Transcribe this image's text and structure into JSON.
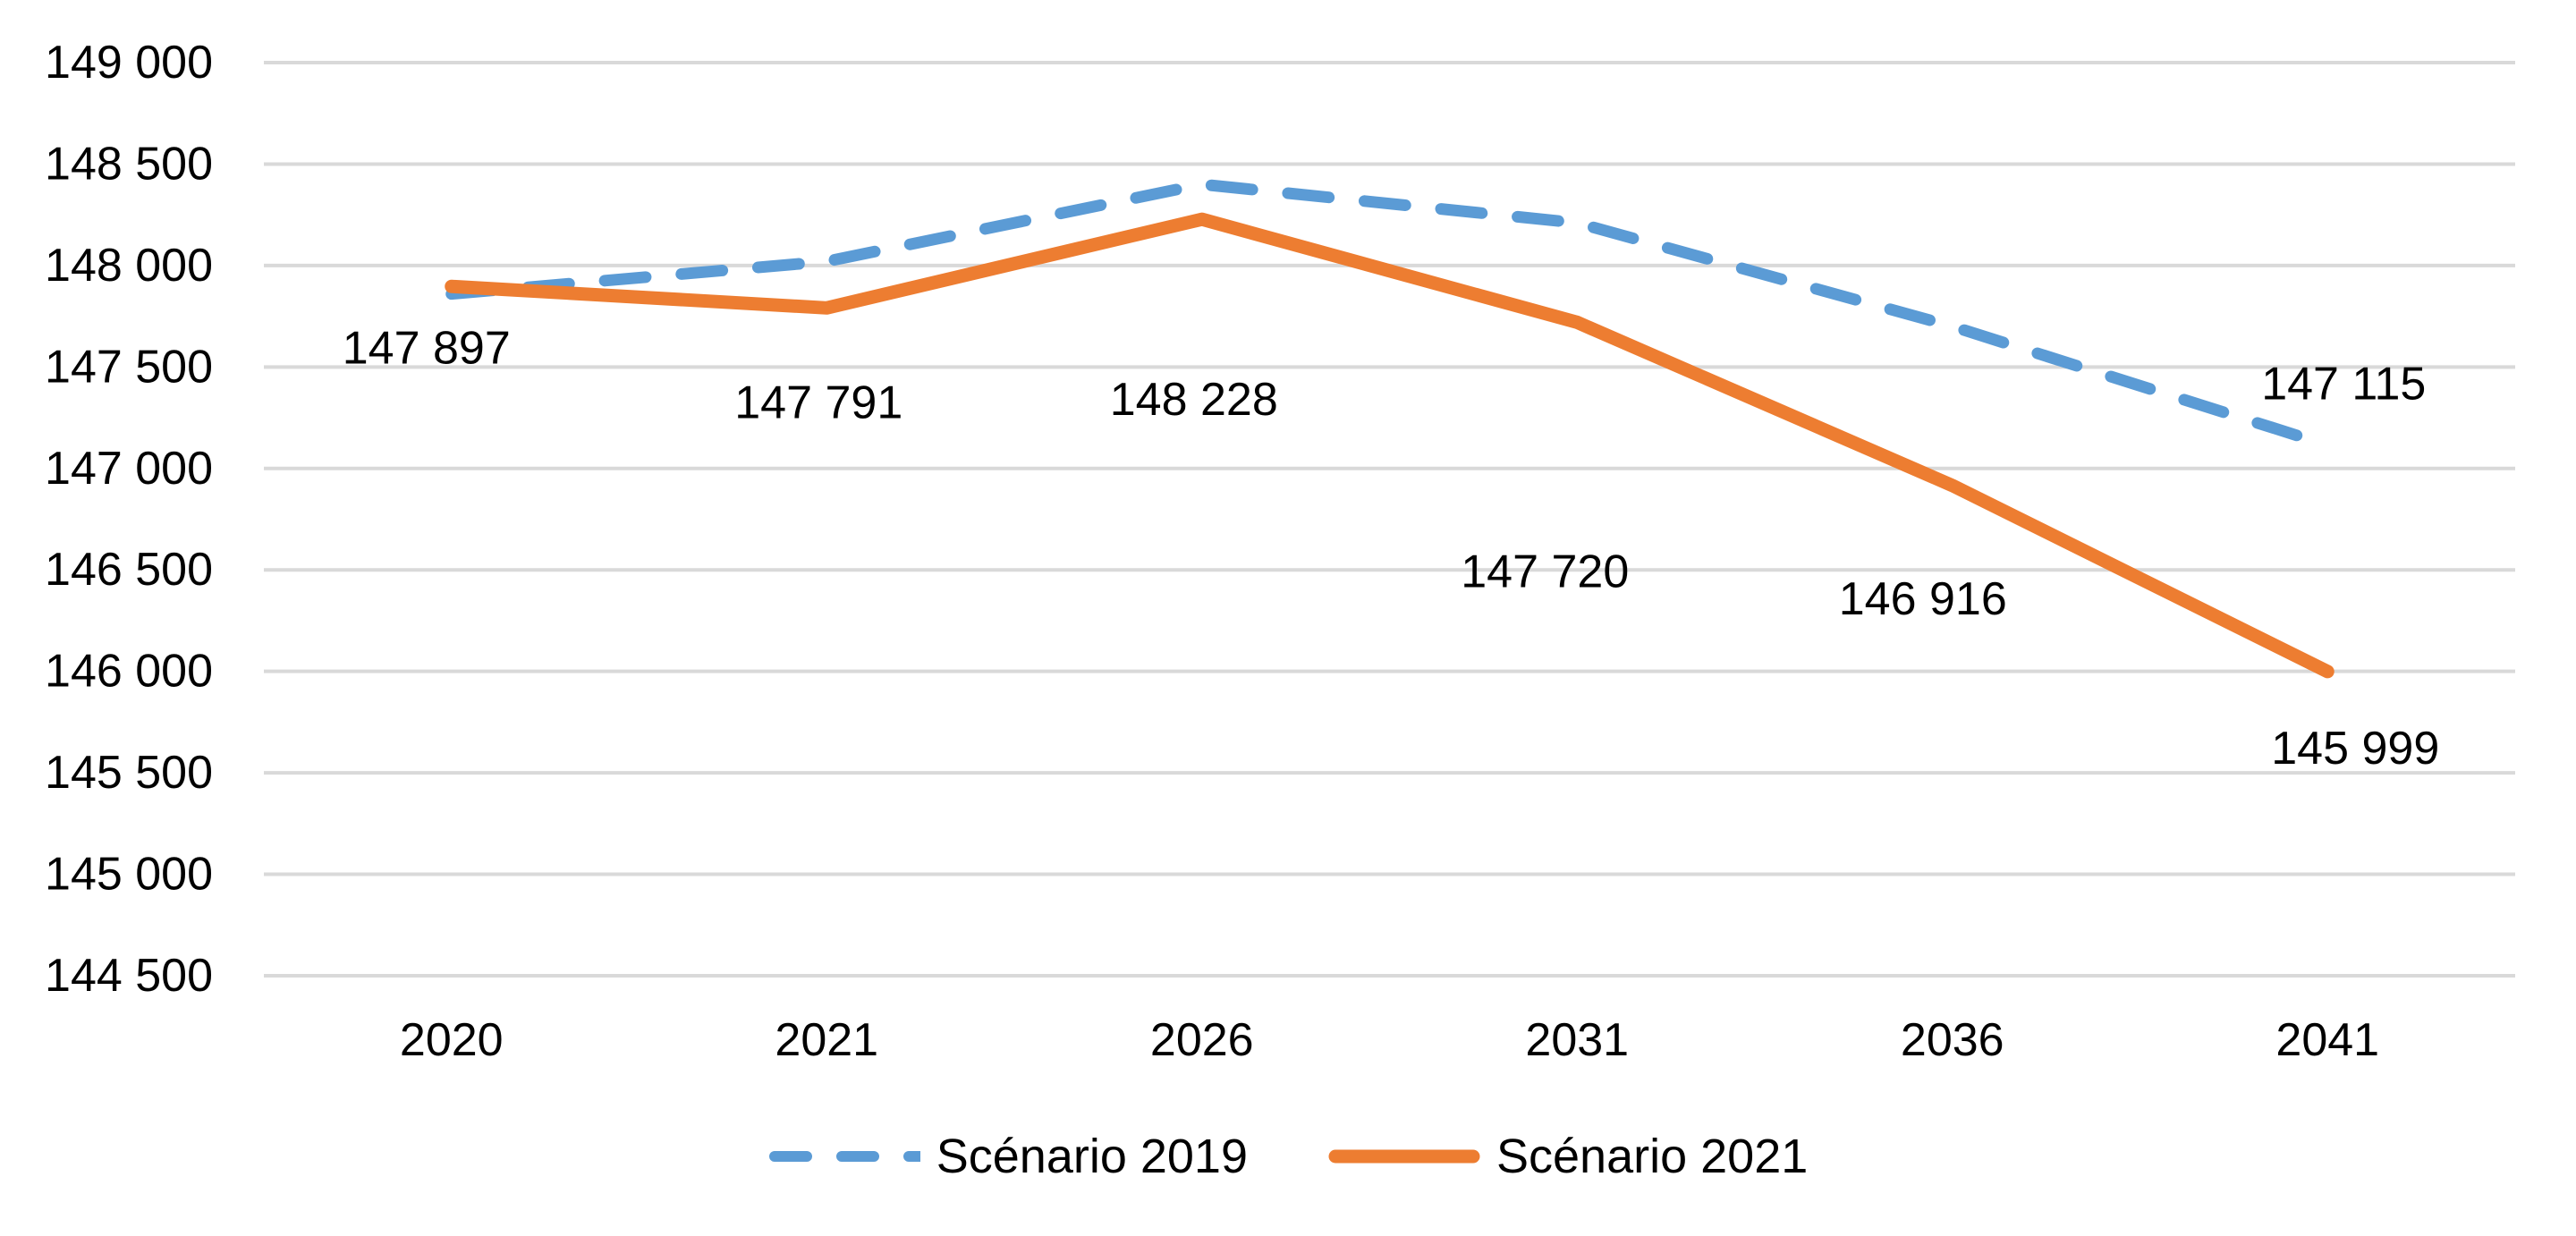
{
  "chart_data": {
    "type": "line",
    "title": "",
    "xlabel": "",
    "ylabel": "",
    "categories": [
      "2020",
      "2021",
      "2026",
      "2031",
      "2036",
      "2041"
    ],
    "series": [
      {
        "name": "Scénario 2019",
        "color": "#5B9BD5",
        "line_style": "dashed",
        "values": [
          147860,
          148020,
          148400,
          148210,
          147700,
          147115
        ],
        "point_labels": [
          "",
          "",
          "",
          "",
          "",
          "147 115"
        ]
      },
      {
        "name": "Scénario 2021",
        "color": "#ED7D31",
        "line_style": "solid",
        "values": [
          147897,
          147791,
          148228,
          147720,
          146916,
          145999
        ],
        "point_labels": [
          "147 897",
          "147 791",
          "148 228",
          "147 720",
          "146 916",
          "145 999"
        ]
      }
    ],
    "ylim": [
      144500,
      149000
    ],
    "ytick_step": 500,
    "ytick_labels": [
      "144 500",
      "145 000",
      "145 500",
      "146 000",
      "146 500",
      "147 000",
      "147 500",
      "148 000",
      "148 500",
      "149 000"
    ],
    "grid": "horizontal",
    "gridline_color": "#D9D9D9",
    "text_color": "#000000",
    "background_color": "#FFFFFF",
    "legend_position": "bottom"
  },
  "legend": {
    "items": [
      {
        "label": "Scénario 2019"
      },
      {
        "label": "Scénario 2021"
      }
    ]
  }
}
